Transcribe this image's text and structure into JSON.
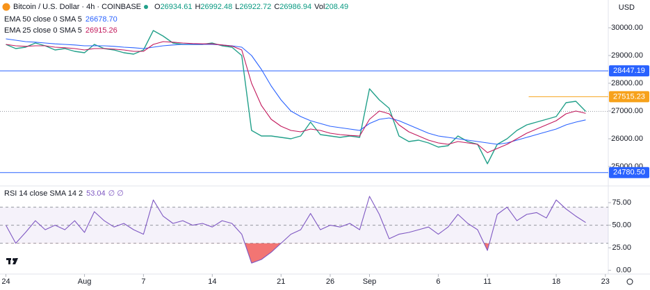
{
  "chart_data": [
    {
      "type": "line",
      "symbol": "Bitcoin / U.S. Dollar · 4h · COINBASE",
      "ohlc": [
        {
          "label": "O",
          "value": 26934.61
        },
        {
          "label": "H",
          "value": 26992.48
        },
        {
          "label": "L",
          "value": 26922.72
        },
        {
          "label": "C",
          "value": 26986.94
        },
        {
          "label": "Vol",
          "value": 208.49
        }
      ],
      "currency": "USD",
      "x": [
        0,
        1,
        2,
        3,
        4,
        5,
        6,
        7,
        8,
        9,
        10,
        11,
        12,
        13,
        14,
        15,
        16,
        17,
        18,
        19,
        20,
        21,
        22,
        23,
        24,
        25,
        26,
        27,
        28,
        29,
        30,
        31,
        32,
        33,
        34,
        35,
        36,
        37,
        38,
        39,
        40,
        41,
        42,
        43,
        44,
        45,
        46,
        47,
        48,
        49,
        50,
        51,
        52,
        53,
        54,
        55,
        56,
        57,
        58,
        59
      ],
      "xlim": [
        -0.6,
        61.3
      ],
      "xticks": [
        {
          "value": 0,
          "label": "24"
        },
        {
          "value": 8,
          "label": "Aug"
        },
        {
          "value": 14,
          "label": "7"
        },
        {
          "value": 21,
          "label": "14"
        },
        {
          "value": 28,
          "label": "21"
        },
        {
          "value": 33,
          "label": "26"
        },
        {
          "value": 37,
          "label": "Sep"
        },
        {
          "value": 44,
          "label": "6"
        },
        {
          "value": 49,
          "label": "11"
        },
        {
          "value": 56,
          "label": "18"
        },
        {
          "value": 61,
          "label": "23"
        }
      ],
      "ylim": [
        24300,
        31000
      ],
      "yticks": [
        {
          "value": 30000,
          "label": "30000.00"
        },
        {
          "value": 29000,
          "label": "29000.00"
        },
        {
          "value": 28000,
          "label": "28000.00"
        },
        {
          "value": 27000,
          "label": "27000.00"
        },
        {
          "value": 26000,
          "label": "26000.00"
        },
        {
          "value": 25000,
          "label": "25000.00"
        }
      ],
      "grid": false,
      "series": [
        {
          "name": "Bitcoin / U.S. Dollar",
          "color": "#22a08a",
          "values": [
            29400,
            29250,
            29300,
            29450,
            29350,
            29200,
            29250,
            29150,
            29100,
            29400,
            29250,
            29200,
            29100,
            29050,
            29200,
            29900,
            29700,
            29450,
            29400,
            29400,
            29400,
            29450,
            29350,
            29300,
            29000,
            26300,
            26100,
            26100,
            26050,
            26000,
            26100,
            26600,
            26150,
            26100,
            26050,
            26100,
            26050,
            27800,
            27400,
            27100,
            26100,
            25900,
            25950,
            25850,
            25700,
            25750,
            26100,
            25900,
            25800,
            25100,
            25800,
            26000,
            26300,
            26500,
            26600,
            26700,
            26800,
            27300,
            27350,
            26986.94
          ]
        },
        {
          "name": "EMA 50 close 0 SMA 5",
          "legend_value": {
            "value": 26678.7,
            "label": "26678.70"
          },
          "color": "#2962ff",
          "values": [
            29600,
            29550,
            29500,
            29480,
            29450,
            29420,
            29400,
            29380,
            29350,
            29350,
            29350,
            29330,
            29300,
            29280,
            29250,
            29300,
            29350,
            29380,
            29400,
            29400,
            29400,
            29400,
            29380,
            29350,
            29300,
            29000,
            28500,
            27900,
            27400,
            27000,
            26800,
            26650,
            26550,
            26450,
            26400,
            26350,
            26300,
            26550,
            26700,
            26750,
            26650,
            26500,
            26350,
            26200,
            26100,
            26050,
            26000,
            25950,
            25900,
            25850,
            25800,
            25850,
            25950,
            26050,
            26150,
            26250,
            26350,
            26500,
            26600,
            26680
          ]
        },
        {
          "name": "EMA 25 close 0 SMA 5",
          "legend_value": {
            "value": 26915.26,
            "label": "26915.26"
          },
          "color": "#c2185b",
          "values": [
            29400,
            29350,
            29330,
            29350,
            29350,
            29300,
            29280,
            29250,
            29200,
            29250,
            29250,
            29230,
            29200,
            29150,
            29150,
            29400,
            29500,
            29480,
            29450,
            29430,
            29420,
            29420,
            29380,
            29340,
            29200,
            28000,
            27200,
            26700,
            26450,
            26300,
            26250,
            26350,
            26300,
            26200,
            26150,
            26120,
            26100,
            26700,
            27000,
            26900,
            26500,
            26250,
            26100,
            25950,
            25850,
            25800,
            25900,
            25850,
            25800,
            25500,
            25650,
            25800,
            26000,
            26200,
            26350,
            26500,
            26650,
            26900,
            27000,
            26915
          ]
        }
      ],
      "hlines": [
        {
          "value": 28447.19,
          "label": "28447.19",
          "color": "#2962ff"
        },
        {
          "value": 24780.5,
          "label": "24780.50",
          "color": "#2962ff"
        },
        {
          "value": 27515.23,
          "label": "27515.23",
          "color": "#f7a21b",
          "x_start": 53.2
        }
      ]
    },
    {
      "type": "line",
      "name": "RSI 14 close SMA 14 2",
      "legend_value": 53.04,
      "extra": "∅ ∅",
      "ylim": [
        -8,
        92
      ],
      "yticks": [
        {
          "value": 75,
          "label": "75.00"
        },
        {
          "value": 50,
          "label": "50.00"
        },
        {
          "value": 25,
          "label": "25.00"
        },
        {
          "value": 0,
          "label": "0.00"
        }
      ],
      "reference_lines": [
        70,
        50,
        30
      ],
      "oversold": 30,
      "color": "#7e57c2",
      "values": [
        50,
        30,
        42,
        55,
        45,
        50,
        45,
        55,
        42,
        65,
        55,
        48,
        52,
        45,
        40,
        78,
        60,
        52,
        55,
        50,
        52,
        48,
        55,
        52,
        40,
        8,
        12,
        20,
        30,
        40,
        45,
        63,
        45,
        50,
        48,
        52,
        45,
        82,
        62,
        35,
        40,
        42,
        45,
        48,
        40,
        48,
        62,
        52,
        45,
        22,
        62,
        70,
        55,
        62,
        64,
        58,
        78,
        68,
        60,
        53
      ]
    }
  ]
}
